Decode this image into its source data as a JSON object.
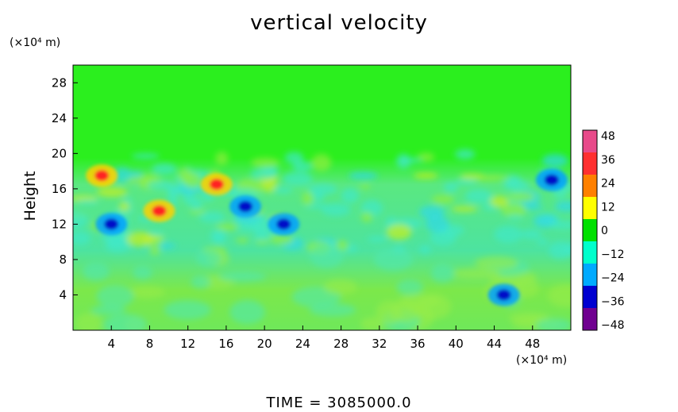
{
  "chart_data": {
    "type": "heatmap",
    "title": "vertical velocity",
    "ylabel": "Height",
    "y_unit": "(×10⁴ m)",
    "x_unit": "(×10⁴ m)",
    "xlim": [
      0,
      52
    ],
    "ylim": [
      0,
      30
    ],
    "x_ticks": [
      "4",
      "8",
      "12",
      "16",
      "20",
      "24",
      "28",
      "32",
      "36",
      "40",
      "44",
      "48"
    ],
    "y_ticks": [
      "4",
      "8",
      "12",
      "16",
      "20",
      "24",
      "28"
    ],
    "colorbar": {
      "ticks": [
        "48",
        "36",
        "24",
        "12",
        "0",
        "−12",
        "−24",
        "−36",
        "−48"
      ],
      "range": [
        -48,
        48
      ],
      "colors": [
        "#e84a8a",
        "#ff3030",
        "#ff8000",
        "#ffff00",
        "#00e000",
        "#00ffcc",
        "#00aaff",
        "#0000d0",
        "#700090"
      ]
    },
    "features": [
      {
        "x": 3,
        "y": 17.5,
        "sign": "+"
      },
      {
        "x": 9,
        "y": 13.5,
        "sign": "+"
      },
      {
        "x": 15,
        "y": 16.5,
        "sign": "+"
      },
      {
        "x": 4,
        "y": 12,
        "sign": "-"
      },
      {
        "x": 18,
        "y": 14,
        "sign": "-"
      },
      {
        "x": 22,
        "y": 12,
        "sign": "-"
      },
      {
        "x": 50,
        "y": 17,
        "sign": "-"
      },
      {
        "x": 45,
        "y": 4,
        "sign": "-"
      }
    ],
    "time_label": "TIME  =  3085000.0"
  }
}
